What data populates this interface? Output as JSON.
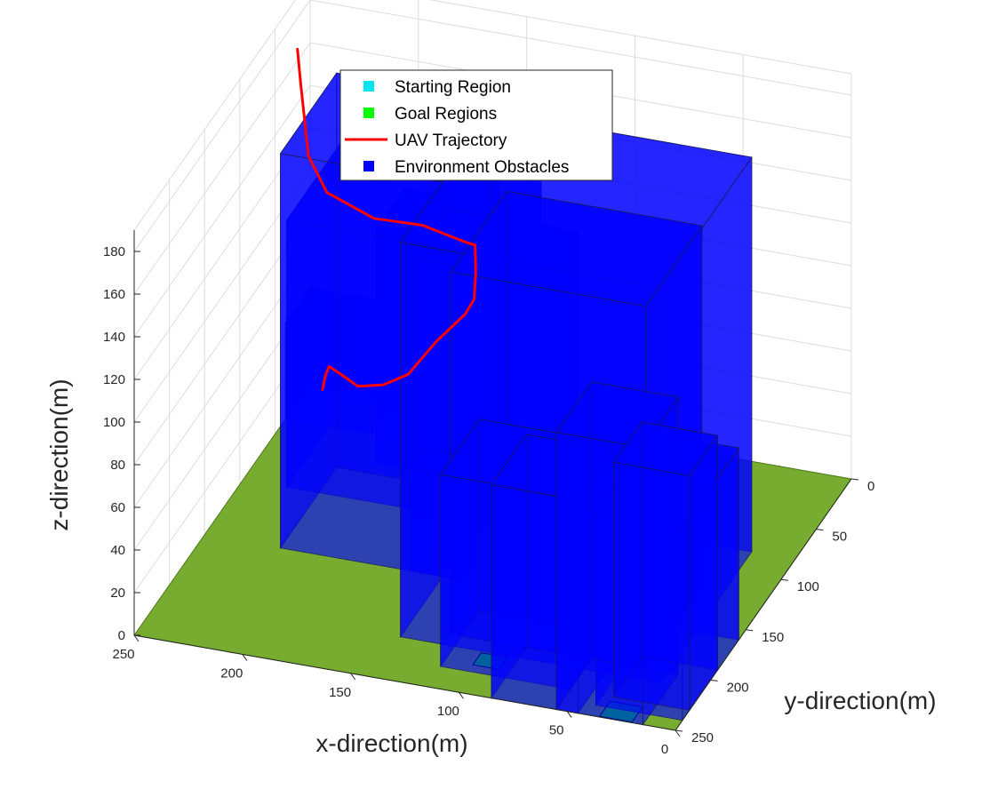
{
  "chart_data": {
    "type": "3d-scene",
    "title": "",
    "xlabel": "x-direction(m)",
    "ylabel": "y-direction(m)",
    "zlabel": "z-direction(m)",
    "xlim": [
      0,
      250
    ],
    "ylim": [
      0,
      250
    ],
    "zlim": [
      0,
      190
    ],
    "x_ticks": [
      0,
      50,
      100,
      150,
      200,
      250
    ],
    "y_ticks": [
      0,
      50,
      100,
      150,
      200,
      250
    ],
    "z_ticks": [
      0,
      20,
      40,
      60,
      80,
      100,
      120,
      140,
      160,
      180
    ],
    "grid": true,
    "legend_position": "top-center",
    "legend": [
      {
        "label": "Starting Region",
        "marker": "square",
        "color": "#00e5ee"
      },
      {
        "label": "Goal Regions",
        "marker": "square",
        "color": "#00ff00"
      },
      {
        "label": "UAV Trajectory",
        "marker": "line",
        "color": "#ff0000"
      },
      {
        "label": "Environment Obstacles",
        "marker": "square",
        "color": "#0000ff"
      }
    ],
    "colors": {
      "ground": "#77ac30",
      "obstacle": "#0000ff",
      "trajectory": "#ff0000",
      "start": "#00e5ee",
      "goal": "#00ff00"
    },
    "ground": {
      "x": [
        0,
        250
      ],
      "y": [
        0,
        250
      ]
    },
    "start_region": {
      "x": [
        237,
        248
      ],
      "y": [
        2,
        13
      ]
    },
    "goal_regions": [
      {
        "x": [
          90,
          102
        ],
        "y": [
          212,
          224
        ]
      },
      {
        "x": [
          40,
          55
        ],
        "y": [
          154,
          168
        ]
      },
      {
        "x": [
          20,
          35
        ],
        "y": [
          235,
          250
        ]
      }
    ],
    "obstacles": [
      {
        "x": [
          210,
          250
        ],
        "y": [
          0,
          35
        ],
        "z": [
          0,
          45
        ]
      },
      {
        "x": [
          130,
          155
        ],
        "y": [
          130,
          150
        ],
        "z": [
          0,
          48
        ]
      },
      {
        "x": [
          150,
          200
        ],
        "y": [
          20,
          60
        ],
        "z": [
          0,
          110
        ]
      },
      {
        "x": [
          110,
          170
        ],
        "y": [
          50,
          100
        ],
        "z": [
          0,
          120
        ]
      },
      {
        "x": [
          140,
          230
        ],
        "y": [
          10,
          95
        ],
        "z": [
          0,
          125
        ]
      },
      {
        "x": [
          140,
          215
        ],
        "y": [
          70,
          150
        ],
        "z": [
          0,
          185
        ]
      },
      {
        "x": [
          20,
          140
        ],
        "y": [
          80,
          210
        ],
        "z": [
          0,
          185
        ]
      },
      {
        "x": [
          30,
          120
        ],
        "y": [
          120,
          200
        ],
        "z": [
          0,
          170
        ]
      },
      {
        "x": [
          55,
          115
        ],
        "y": [
          175,
          230
        ],
        "z": [
          0,
          90
        ]
      },
      {
        "x": [
          45,
          85
        ],
        "y": [
          200,
          250
        ],
        "z": [
          0,
          100
        ]
      },
      {
        "x": [
          15,
          55
        ],
        "y": [
          200,
          250
        ],
        "z": [
          0,
          130
        ]
      },
      {
        "x": [
          0,
          35
        ],
        "y": [
          190,
          230
        ],
        "z": [
          0,
          110
        ]
      },
      {
        "x": [
          0,
          40
        ],
        "y": [
          160,
          240
        ],
        "z": [
          0,
          90
        ]
      }
    ],
    "trajectory": {
      "x": [
        242,
        240,
        238,
        230,
        215,
        195,
        178,
        160,
        140,
        132,
        128,
        125,
        130,
        150,
        175,
        200,
        215,
        230,
        238
      ],
      "y": [
        7,
        9,
        10,
        20,
        40,
        65,
        82,
        98,
        118,
        130,
        140,
        150,
        152,
        148,
        140,
        130,
        110,
        75,
        55
      ],
      "z": [
        2,
        10,
        15,
        18,
        24,
        40,
        56,
        82,
        108,
        122,
        140,
        158,
        160,
        162,
        157,
        160,
        165,
        180,
        185
      ]
    }
  }
}
